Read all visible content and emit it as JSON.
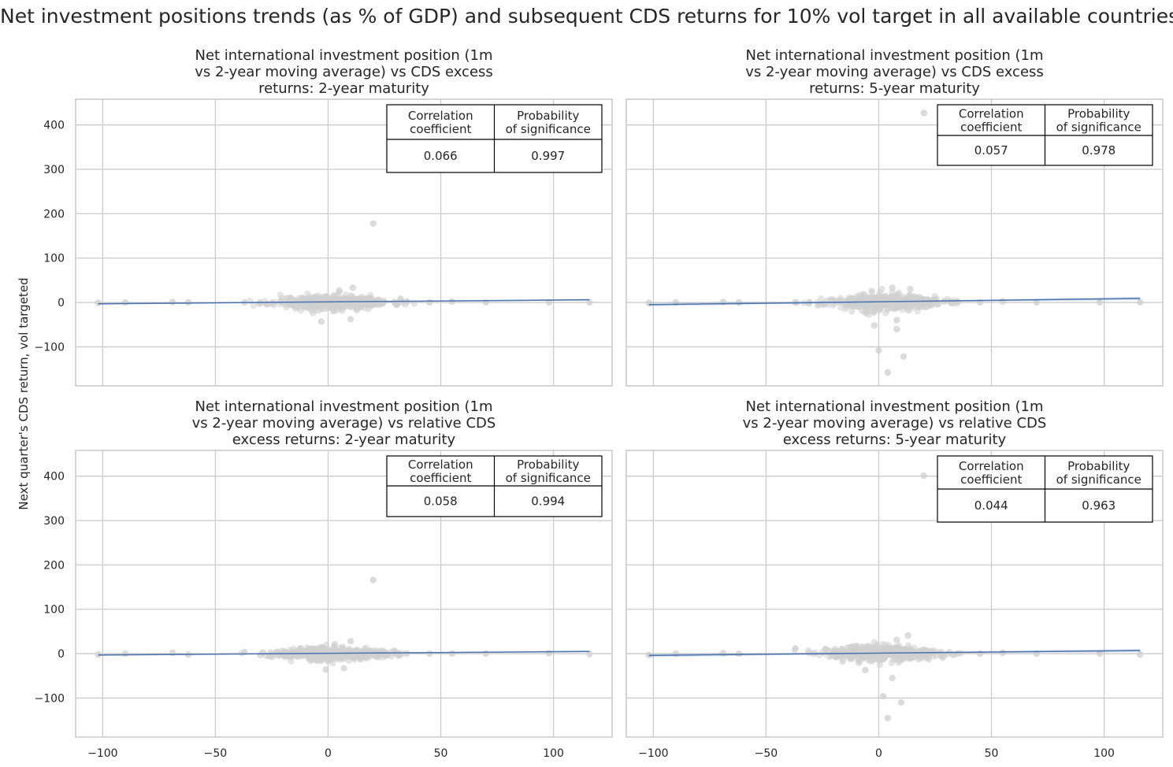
{
  "figure": {
    "title": "Net investment positions trends (as % of GDP) and subsequent CDS returns for 10% vol target in all available countries",
    "ylabel": "Next quarter's CDS return, vol targeted",
    "colors": {
      "points": "#cfcfcf",
      "regression": "#4c72b0",
      "grid": "#cccccc",
      "axes": "#cccccc"
    }
  },
  "chart_data": [
    {
      "type": "scatter",
      "title": "Net international investment position (1m\nvs 2-year moving average) vs CDS excess\nreturns: 2-year maturity",
      "xlim": [
        -112,
        126
      ],
      "ylim": [
        -188,
        458
      ],
      "xticks": [
        -100,
        -50,
        0,
        50,
        100
      ],
      "yticks": [
        -100,
        0,
        100,
        200,
        300,
        400
      ],
      "x_tick_labels_visible": false,
      "y_tick_labels_visible": true,
      "regression": {
        "x": [
          -102,
          116
        ],
        "y": [
          -3,
          6
        ],
        "ci": 2
      },
      "outliers": [
        [
          20,
          178
        ],
        [
          -102,
          -1
        ],
        [
          -90,
          0
        ],
        [
          -69,
          1
        ],
        [
          -62,
          0
        ],
        [
          116,
          0
        ],
        [
          98,
          0
        ],
        [
          70,
          0
        ],
        [
          55,
          2
        ],
        [
          45,
          0
        ],
        [
          35,
          2
        ],
        [
          -37,
          0
        ],
        [
          -30,
          -2
        ]
      ],
      "cloud": {
        "x_center": 2,
        "x_spread": 13,
        "y_spread": 9,
        "n": 420,
        "seed": 11,
        "y_extremes": [
          [
            -3,
            -43
          ],
          [
            10,
            -38
          ],
          [
            11,
            33
          ],
          [
            5,
            27
          ]
        ]
      },
      "table": {
        "header": [
          "Correlation\ncoefficient",
          "Probability\nof significance"
        ],
        "values": [
          "0.066",
          "0.997"
        ]
      }
    },
    {
      "type": "scatter",
      "title": "Net international investment position (1m\nvs 2-year moving average) vs CDS excess\nreturns: 5-year maturity",
      "xlim": [
        -112,
        126
      ],
      "ylim": [
        -188,
        458
      ],
      "xticks": [
        -100,
        -50,
        0,
        50,
        100
      ],
      "yticks": [
        -100,
        0,
        100,
        200,
        300,
        400
      ],
      "x_tick_labels_visible": false,
      "y_tick_labels_visible": false,
      "regression": {
        "x": [
          -102,
          116
        ],
        "y": [
          -5,
          9
        ],
        "ci": 4
      },
      "outliers": [
        [
          20,
          427
        ],
        [
          -102,
          -1
        ],
        [
          -90,
          0
        ],
        [
          -69,
          1
        ],
        [
          -62,
          0
        ],
        [
          116,
          0
        ],
        [
          98,
          0
        ],
        [
          70,
          0
        ],
        [
          55,
          2
        ],
        [
          45,
          0
        ],
        [
          35,
          2
        ],
        [
          -37,
          0
        ],
        [
          0,
          -108
        ],
        [
          4,
          -158
        ],
        [
          8,
          -60
        ],
        [
          11,
          -122
        ]
      ],
      "cloud": {
        "x_center": 2,
        "x_spread": 13,
        "y_spread": 10,
        "n": 420,
        "seed": 23,
        "y_extremes": [
          [
            -2,
            -52
          ],
          [
            8,
            -40
          ],
          [
            6,
            33
          ],
          [
            14,
            30
          ]
        ]
      },
      "table": {
        "header": [
          "Correlation\ncoefficient",
          "Probability\nof significance"
        ],
        "values": [
          "0.057",
          "0.978"
        ]
      }
    },
    {
      "type": "scatter",
      "title": "Net international investment position (1m\nvs 2-year moving average) vs relative CDS\nexcess returns: 2-year maturity",
      "xlim": [
        -112,
        126
      ],
      "ylim": [
        -188,
        458
      ],
      "xticks": [
        -100,
        -50,
        0,
        50,
        100
      ],
      "yticks": [
        -100,
        0,
        100,
        200,
        300,
        400
      ],
      "x_tick_labels_visible": true,
      "y_tick_labels_visible": true,
      "regression": {
        "x": [
          -102,
          116
        ],
        "y": [
          -3,
          5
        ],
        "ci": 2
      },
      "outliers": [
        [
          20,
          166
        ],
        [
          -102,
          -2
        ],
        [
          -90,
          0
        ],
        [
          -69,
          2
        ],
        [
          -62,
          -2
        ],
        [
          116,
          -1
        ],
        [
          98,
          1
        ],
        [
          70,
          0
        ],
        [
          55,
          0
        ],
        [
          45,
          0
        ],
        [
          35,
          0
        ],
        [
          -37,
          4
        ],
        [
          -30,
          -3
        ]
      ],
      "cloud": {
        "x_center": 2,
        "x_spread": 13,
        "y_spread": 8,
        "n": 420,
        "seed": 37,
        "y_extremes": [
          [
            -1,
            -36
          ],
          [
            7,
            -33
          ],
          [
            10,
            28
          ],
          [
            3,
            21
          ]
        ]
      },
      "table": {
        "header": [
          "Correlation\ncoefficient",
          "Probability\nof significance"
        ],
        "values": [
          "0.058",
          "0.994"
        ]
      }
    },
    {
      "type": "scatter",
      "title": "Net international investment position (1m\nvs 2-year moving average) vs relative CDS\nexcess returns: 5-year maturity",
      "xlim": [
        -112,
        126
      ],
      "ylim": [
        -188,
        458
      ],
      "xticks": [
        -100,
        -50,
        0,
        50,
        100
      ],
      "yticks": [
        -100,
        0,
        100,
        200,
        300,
        400
      ],
      "x_tick_labels_visible": true,
      "y_tick_labels_visible": false,
      "regression": {
        "x": [
          -102,
          116
        ],
        "y": [
          -4,
          7
        ],
        "ci": 4
      },
      "outliers": [
        [
          20,
          401
        ],
        [
          -102,
          -3
        ],
        [
          -90,
          0
        ],
        [
          -69,
          1
        ],
        [
          -62,
          0
        ],
        [
          116,
          -2
        ],
        [
          98,
          0
        ],
        [
          70,
          0
        ],
        [
          55,
          2
        ],
        [
          45,
          0
        ],
        [
          35,
          0
        ],
        [
          -37,
          12
        ],
        [
          2,
          -96
        ],
        [
          4,
          -145
        ],
        [
          10,
          -110
        ]
      ],
      "cloud": {
        "x_center": 2,
        "x_spread": 13,
        "y_spread": 10,
        "n": 420,
        "seed": 51,
        "y_extremes": [
          [
            -6,
            -37
          ],
          [
            6,
            -55
          ],
          [
            13,
            41
          ],
          [
            8,
            31
          ]
        ]
      },
      "table": {
        "header": [
          "Correlation\ncoefficient",
          "Probability\nof significance"
        ],
        "values": [
          "0.044",
          "0.963"
        ]
      }
    }
  ]
}
